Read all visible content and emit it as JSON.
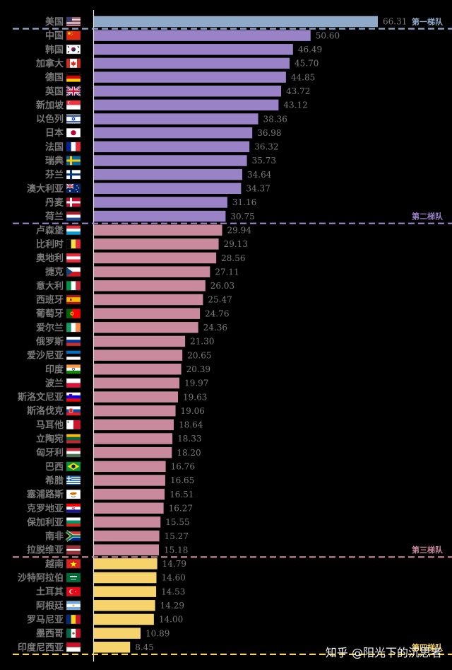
{
  "chart_data": {
    "type": "bar",
    "orientation": "horizontal",
    "title": "",
    "xlabel": "",
    "ylabel": "",
    "xlim": [
      0,
      66.31
    ],
    "grid": false,
    "legend": "none",
    "categories": [
      "美国",
      "中国",
      "韩国",
      "加拿大",
      "德国",
      "英国",
      "新加坡",
      "以色列",
      "日本",
      "法国",
      "瑞典",
      "芬兰",
      "澳大利亚",
      "丹麦",
      "荷兰",
      "卢森堡",
      "比利时",
      "奥地利",
      "捷克",
      "意大利",
      "西班牙",
      "葡萄牙",
      "爱尔兰",
      "俄罗斯",
      "爱沙尼亚",
      "印度",
      "波兰",
      "斯洛文尼亚",
      "斯洛伐克",
      "马耳他",
      "立陶宛",
      "匈牙利",
      "巴西",
      "希腊",
      "塞浦路斯",
      "克罗地亚",
      "保加利亚",
      "南非",
      "拉脱维亚",
      "越南",
      "沙特阿拉伯",
      "土耳其",
      "阿根廷",
      "罗马尼亚",
      "墨西哥",
      "印度尼西亚"
    ],
    "values": [
      66.31,
      50.6,
      46.49,
      45.7,
      44.85,
      43.72,
      43.12,
      38.36,
      36.98,
      36.32,
      35.73,
      34.64,
      34.37,
      31.16,
      30.75,
      29.94,
      29.13,
      28.56,
      27.11,
      26.03,
      25.47,
      24.76,
      24.36,
      21.3,
      20.65,
      20.39,
      19.97,
      19.63,
      19.06,
      18.64,
      18.33,
      18.2,
      16.76,
      16.65,
      16.51,
      16.27,
      15.55,
      15.27,
      15.18,
      14.79,
      14.6,
      14.53,
      14.29,
      14.0,
      10.89,
      8.45
    ],
    "value_labels": [
      "66.31",
      "50.60",
      "46.49",
      "45.70",
      "44.85",
      "43.72",
      "43.12",
      "38.36",
      "36.98",
      "36.32",
      "35.73",
      "34.64",
      "34.37",
      "31.16",
      "30.75",
      "29.94",
      "29.13",
      "28.56",
      "27.11",
      "26.03",
      "25.47",
      "24.76",
      "24.36",
      "21.30",
      "20.65",
      "20.39",
      "19.97",
      "19.63",
      "19.06",
      "18.64",
      "18.33",
      "18.20",
      "16.76",
      "16.65",
      "16.51",
      "16.27",
      "15.55",
      "15.27",
      "15.18",
      "14.79",
      "14.60",
      "14.53",
      "14.29",
      "14.00",
      "10.89",
      "8.45"
    ],
    "tiers": [
      {
        "label": "第一梯队",
        "start": 0,
        "end": 0,
        "color": "#8fa9c9"
      },
      {
        "label": "第二梯队",
        "start": 1,
        "end": 14,
        "color": "#9a82c6"
      },
      {
        "label": "第三梯队",
        "start": 15,
        "end": 38,
        "color": "#c98a9e"
      },
      {
        "label": "第四梯队",
        "start": 39,
        "end": 45,
        "color": "#f6d46b"
      }
    ]
  },
  "flags": [
    "us",
    "cn",
    "kr",
    "ca",
    "de",
    "gb",
    "sg",
    "il",
    "jp",
    "fr",
    "se",
    "fi",
    "au",
    "dk",
    "nl",
    "lu",
    "be",
    "at",
    "cz",
    "it",
    "es",
    "pt",
    "ie",
    "ru",
    "ee",
    "in",
    "pl",
    "si",
    "sk",
    "mt",
    "lt",
    "hu",
    "br",
    "gr",
    "cy",
    "hr",
    "bg",
    "za",
    "lv",
    "vn",
    "sa",
    "tr",
    "ar",
    "ro",
    "mx",
    "id"
  ],
  "watermark": "知乎 @阳光下的沉思者"
}
